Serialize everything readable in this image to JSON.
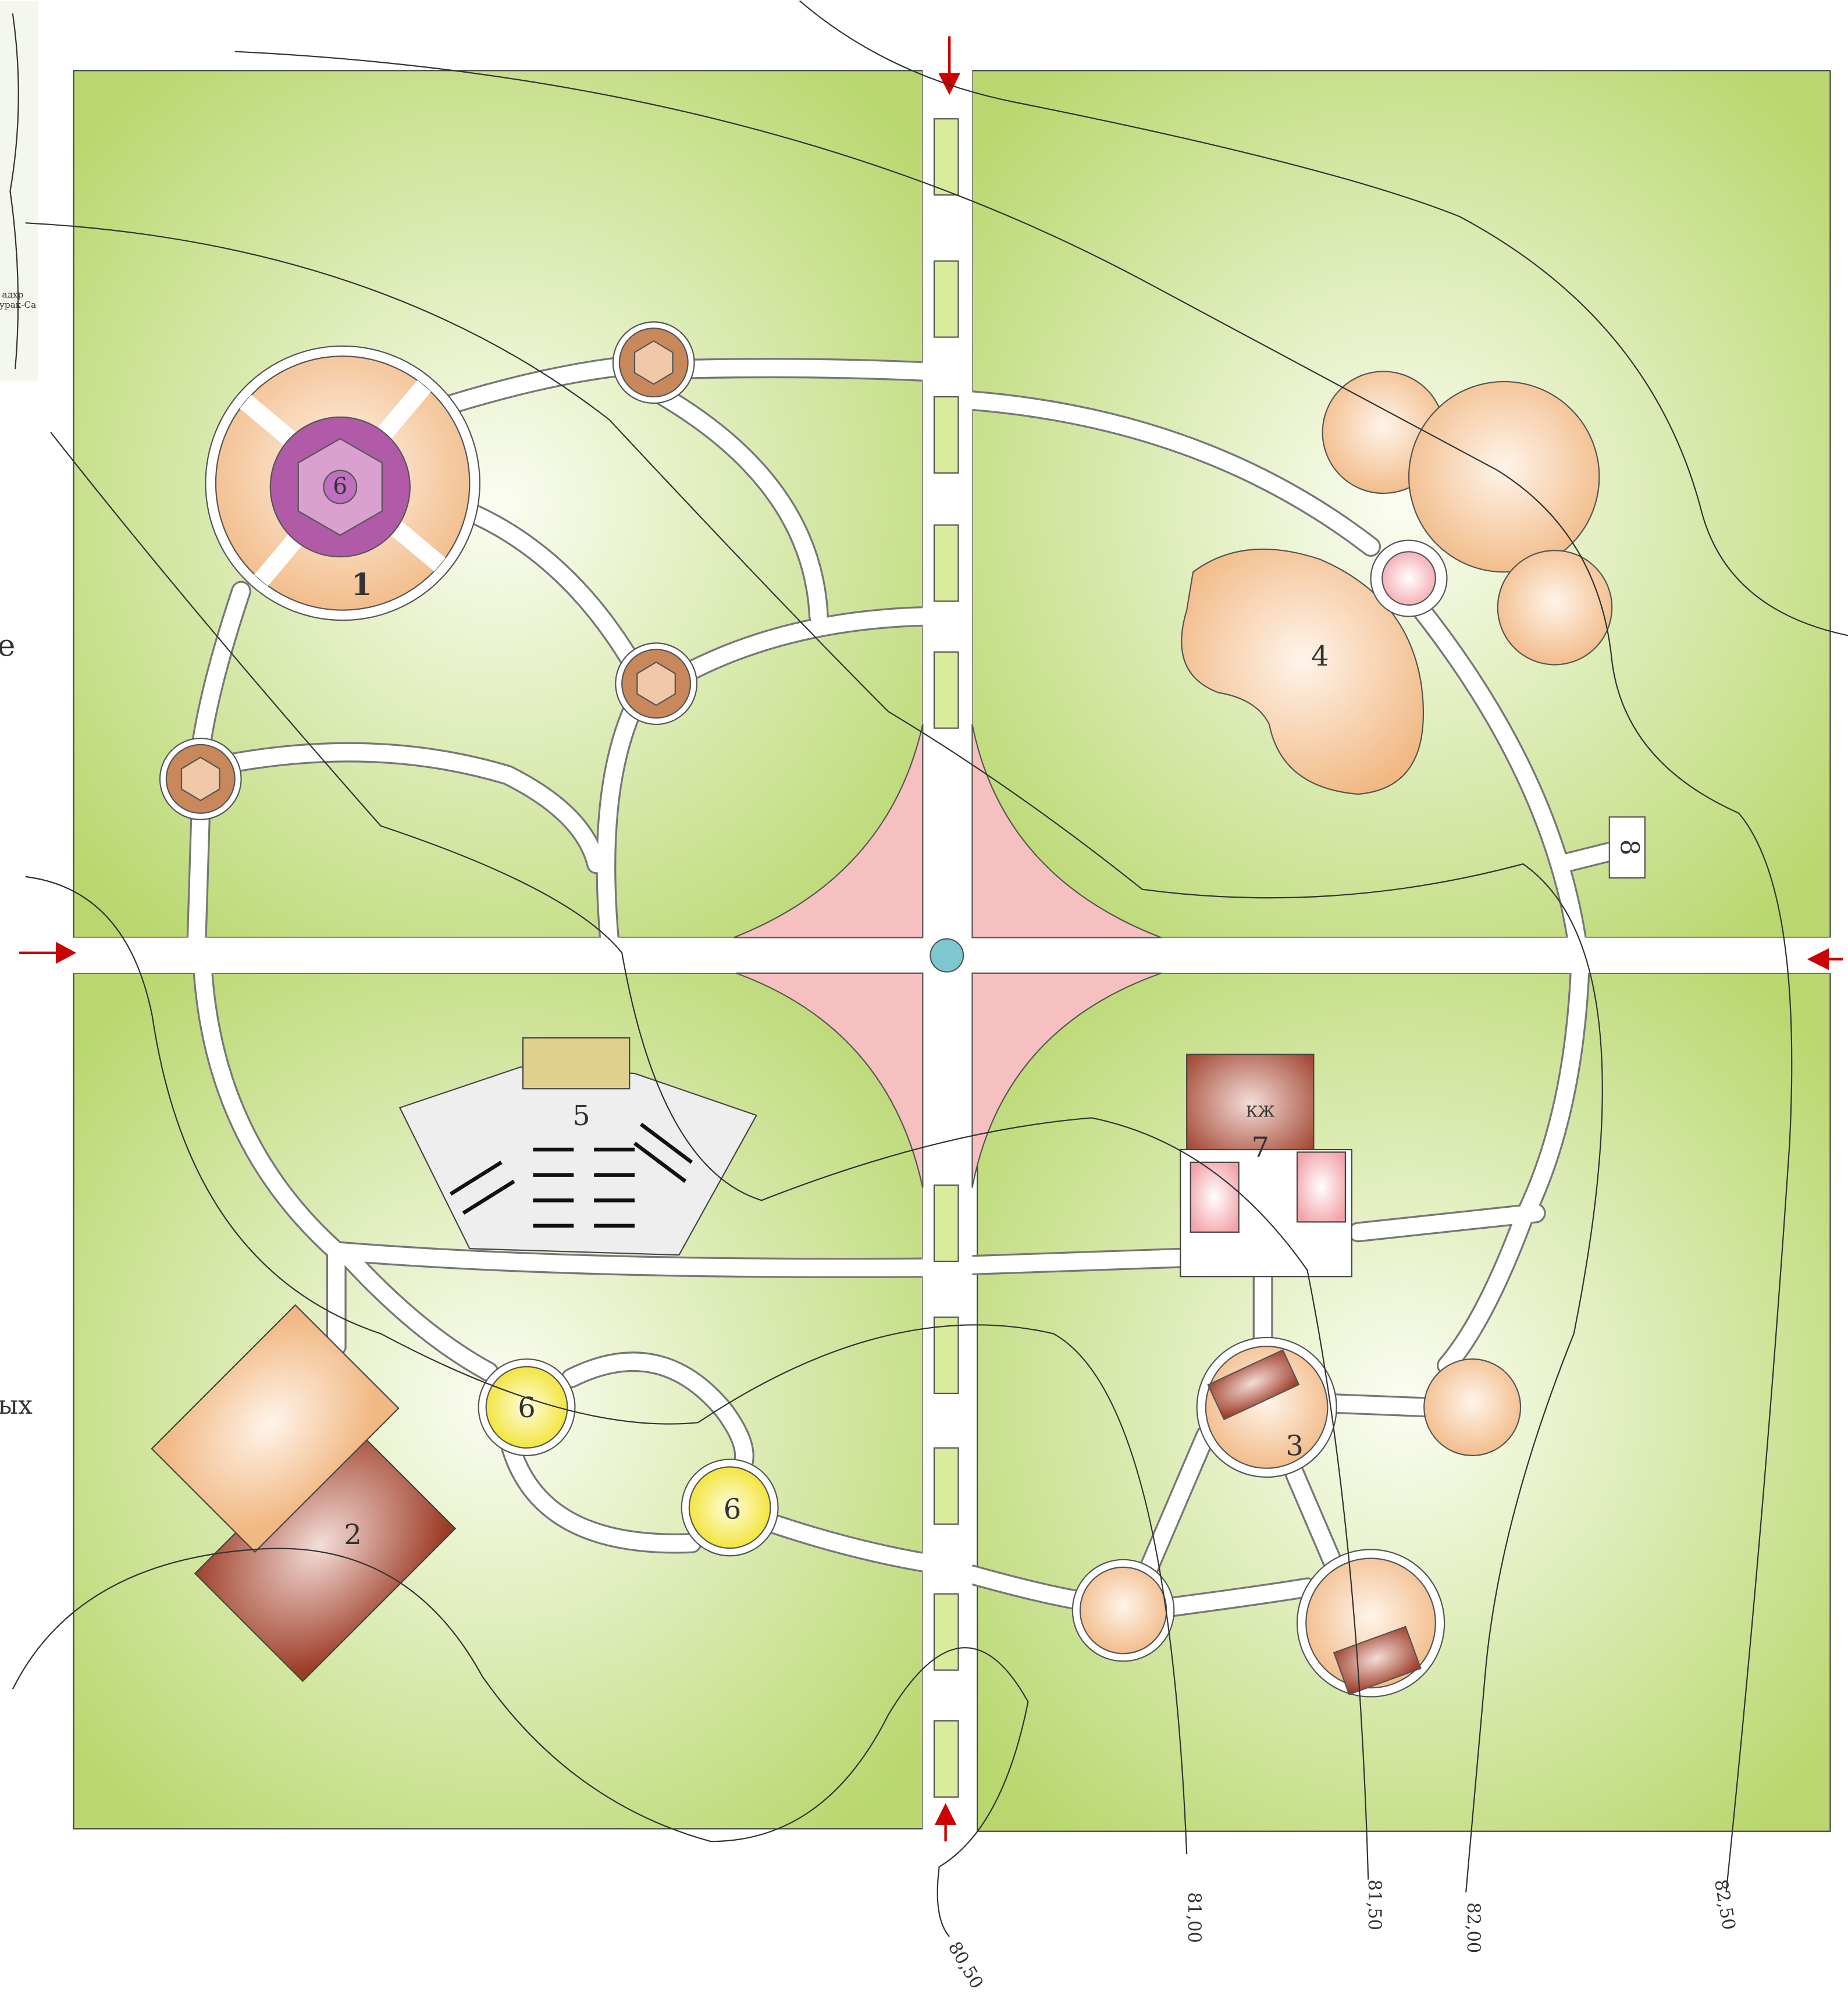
{
  "zones": [
    "1",
    "2",
    "3",
    "4",
    "5",
    "6",
    "6",
    "6",
    "7",
    "8",
    "КЖ"
  ],
  "contour_labels": [
    "80,50",
    "81,00",
    "81,50",
    "82,00",
    "82,50"
  ],
  "edge_text": [
    "е",
    "ых",
    "адхр",
    "урак-Са"
  ]
}
